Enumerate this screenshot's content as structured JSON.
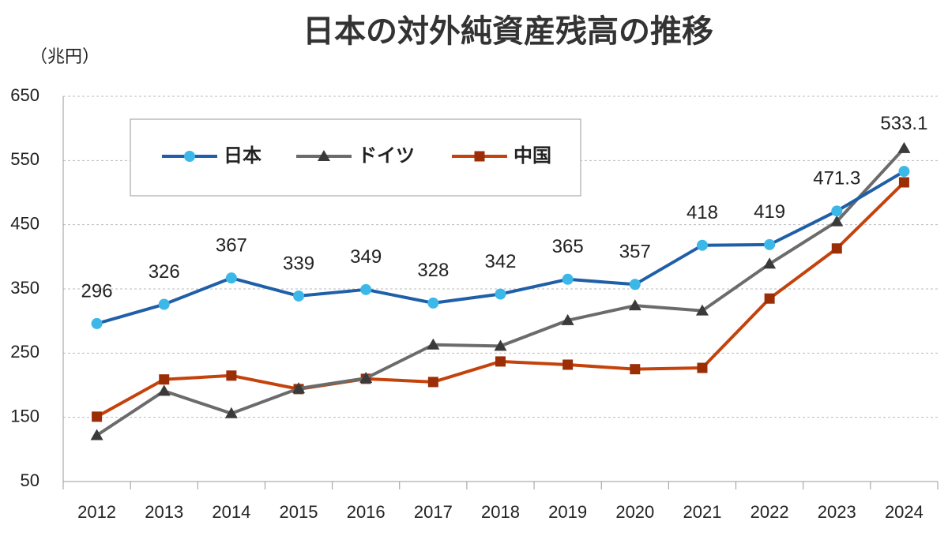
{
  "chart_data": {
    "type": "line",
    "title": "日本の対外純資産残高の推移",
    "y_label": "（兆円）",
    "categories": [
      "2012",
      "2013",
      "2014",
      "2015",
      "2016",
      "2017",
      "2018",
      "2019",
      "2020",
      "2021",
      "2022",
      "2023",
      "2024"
    ],
    "series": [
      {
        "name": "日本",
        "color": "#1f5fa8",
        "marker": "circle",
        "marker_color": "#3cb8e8",
        "data_labels": true,
        "values": [
          296,
          326,
          367,
          339,
          349,
          328,
          342,
          365,
          357,
          418,
          419,
          471.3,
          533.1
        ]
      },
      {
        "name": "ドイツ",
        "color": "#6b6b6b",
        "marker": "triangle",
        "marker_color": "#3a3a3a",
        "data_labels": false,
        "values": [
          122,
          191,
          156,
          195,
          211,
          263,
          261,
          301,
          324,
          316,
          389,
          455,
          569
        ]
      },
      {
        "name": "中国",
        "color": "#c4420c",
        "marker": "square",
        "marker_color": "#9c2e06",
        "data_labels": false,
        "values": [
          151,
          209,
          215,
          194,
          210,
          205,
          237,
          232,
          225,
          227,
          335,
          413,
          516
        ]
      }
    ],
    "ylim": [
      50,
      650
    ],
    "yticks": [
      50,
      150,
      250,
      350,
      450,
      550,
      650
    ],
    "grid": true
  }
}
